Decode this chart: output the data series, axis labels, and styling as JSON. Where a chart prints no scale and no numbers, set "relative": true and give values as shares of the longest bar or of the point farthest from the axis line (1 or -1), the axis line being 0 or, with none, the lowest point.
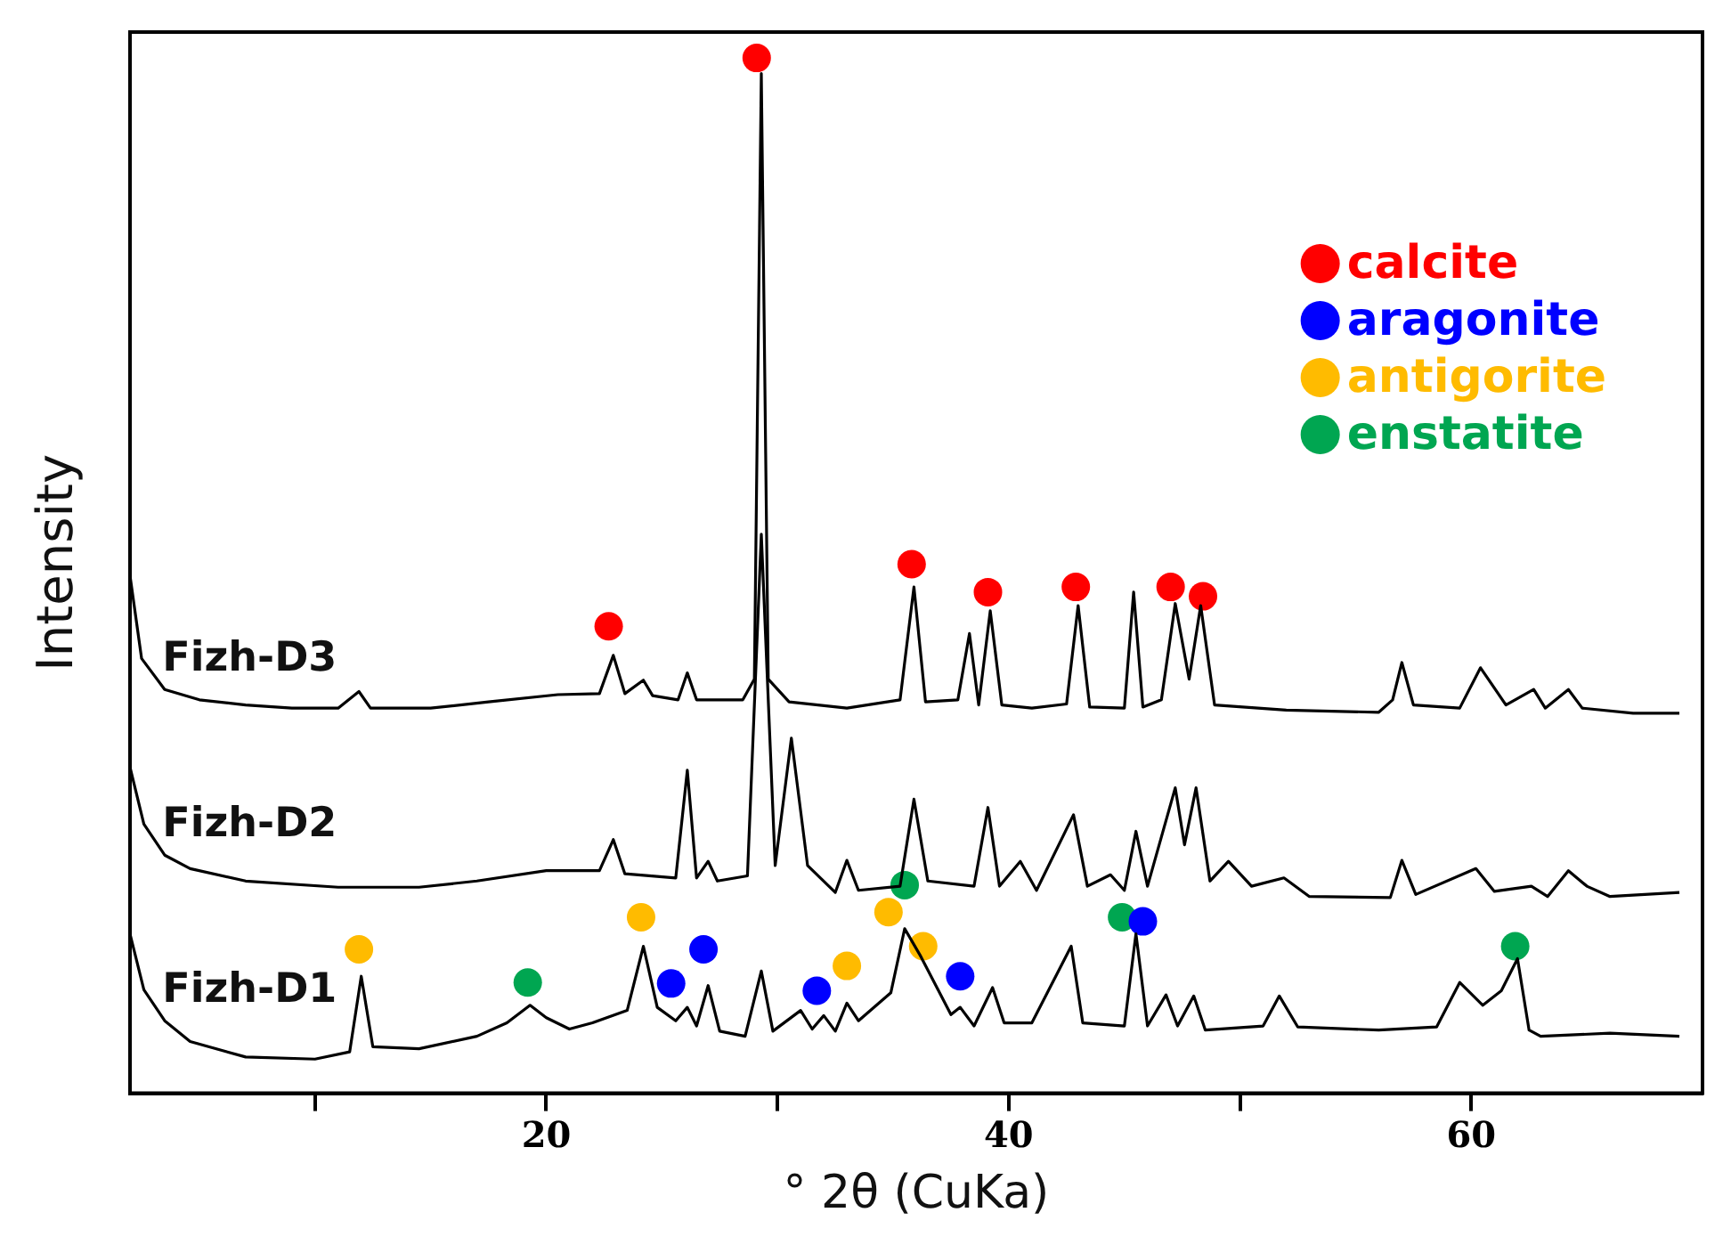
{
  "chart_data": {
    "type": "line",
    "xlabel": "° 2θ (CuKa)",
    "ylabel": "Intensity",
    "relative": true,
    "legend": "top right",
    "grid": false,
    "xlim": [
      2,
      70
    ],
    "xticks": [
      {
        "value": 10,
        "label": null
      },
      20,
      {
        "value": 30,
        "label": null
      },
      40,
      {
        "value": 50,
        "label": null
      },
      60
    ],
    "series": [
      {
        "name": "Fizh-D1",
        "color": "#000000",
        "x": [
          2.0,
          2.6,
          3.5,
          4.6,
          7,
          10,
          11.5,
          12.0,
          12.5,
          14.5,
          17,
          18.3,
          19.3,
          20,
          21,
          22,
          23.5,
          24.2,
          24.8,
          25.6,
          26.1,
          26.5,
          27.0,
          27.5,
          28.6,
          29.3,
          29.8,
          31.0,
          31.5,
          32.0,
          32.5,
          33.0,
          33.5,
          34.9,
          35.5,
          36.2,
          37.5,
          37.9,
          38.5,
          39.3,
          39.8,
          41,
          42.7,
          43.2,
          45.0,
          45.5,
          46.0,
          46.8,
          47.3,
          48.0,
          48.5,
          51.0,
          51.7,
          52.5,
          56,
          58.5,
          59.5,
          60.5,
          61.3,
          62.0,
          62.5,
          63,
          66,
          69
        ],
        "values": [
          0.154,
          0.1,
          0.07,
          0.05,
          0.035,
          0.033,
          0.04,
          0.113,
          0.045,
          0.043,
          0.055,
          0.068,
          0.085,
          0.073,
          0.062,
          0.068,
          0.08,
          0.142,
          0.083,
          0.07,
          0.083,
          0.065,
          0.104,
          0.06,
          0.055,
          0.118,
          0.06,
          0.08,
          0.062,
          0.075,
          0.06,
          0.087,
          0.07,
          0.097,
          0.159,
          0.132,
          0.076,
          0.083,
          0.065,
          0.102,
          0.068,
          0.068,
          0.142,
          0.068,
          0.065,
          0.154,
          0.065,
          0.095,
          0.065,
          0.094,
          0.061,
          0.065,
          0.094,
          0.064,
          0.061,
          0.064,
          0.107,
          0.085,
          0.099,
          0.13,
          0.061,
          0.055,
          0.058,
          0.055
        ]
      },
      {
        "name": "Fizh-D2",
        "color": "#000000",
        "x": [
          2.0,
          2.6,
          3.5,
          4.6,
          7,
          11,
          14.5,
          17,
          20,
          22.3,
          22.9,
          23.4,
          25.6,
          26.1,
          26.5,
          27.0,
          27.4,
          28.7,
          29.3,
          29.9,
          30.6,
          31.3,
          32.5,
          33.0,
          33.5,
          35.3,
          35.9,
          36.5,
          38.5,
          39.1,
          39.6,
          40.5,
          41.2,
          42.8,
          43.4,
          44.4,
          45.0,
          45.5,
          46.0,
          47.2,
          47.6,
          48.1,
          48.7,
          49.5,
          50.5,
          51.9,
          53,
          56.5,
          57.0,
          57.6,
          60.2,
          61,
          62.6,
          63.3,
          64.2,
          65.0,
          66,
          69
        ],
        "values": [
          0.315,
          0.26,
          0.23,
          0.217,
          0.205,
          0.199,
          0.199,
          0.205,
          0.215,
          0.215,
          0.245,
          0.212,
          0.208,
          0.312,
          0.208,
          0.224,
          0.205,
          0.21,
          0.54,
          0.22,
          0.343,
          0.22,
          0.194,
          0.225,
          0.196,
          0.2,
          0.284,
          0.205,
          0.2,
          0.276,
          0.2,
          0.224,
          0.196,
          0.269,
          0.2,
          0.211,
          0.196,
          0.253,
          0.2,
          0.295,
          0.24,
          0.295,
          0.205,
          0.224,
          0.2,
          0.208,
          0.19,
          0.189,
          0.225,
          0.192,
          0.217,
          0.195,
          0.2,
          0.19,
          0.215,
          0.2,
          0.19,
          0.194
        ]
      },
      {
        "name": "Fizh-D3",
        "color": "#000000",
        "x": [
          2.0,
          2.5,
          3.5,
          5,
          7,
          9,
          11,
          11.9,
          12.4,
          15,
          17.5,
          20.5,
          22.3,
          22.9,
          23.4,
          24.2,
          24.6,
          25.7,
          26.1,
          26.5,
          28.5,
          29.0,
          29.3,
          29.6,
          30.5,
          33,
          35.3,
          35.9,
          36.4,
          37.8,
          38.3,
          38.7,
          39.2,
          39.7,
          41,
          42.5,
          43.0,
          43.5,
          45.0,
          45.4,
          45.8,
          46.6,
          47.2,
          47.8,
          48.3,
          48.9,
          52,
          56,
          56.6,
          57.0,
          57.5,
          59.5,
          60.4,
          61.5,
          62.7,
          63.2,
          64.2,
          64.8,
          67,
          69
        ],
        "values": [
          0.5,
          0.42,
          0.39,
          0.38,
          0.375,
          0.372,
          0.372,
          0.388,
          0.372,
          0.372,
          0.378,
          0.385,
          0.386,
          0.423,
          0.386,
          0.399,
          0.384,
          0.38,
          0.406,
          0.38,
          0.38,
          0.4,
          0.985,
          0.4,
          0.378,
          0.372,
          0.38,
          0.489,
          0.378,
          0.38,
          0.444,
          0.375,
          0.466,
          0.375,
          0.372,
          0.376,
          0.471,
          0.373,
          0.372,
          0.484,
          0.373,
          0.38,
          0.473,
          0.4,
          0.471,
          0.375,
          0.37,
          0.368,
          0.38,
          0.416,
          0.375,
          0.372,
          0.411,
          0.375,
          0.39,
          0.372,
          0.39,
          0.372,
          0.367,
          0.367
        ]
      },
      {
        "type": "scatter",
        "marker": "circle",
        "name": "calcite",
        "color": "#ff0000",
        "x": [
          22.7,
          29.1,
          35.8,
          39.1,
          42.9,
          47.0,
          48.4
        ],
        "values": [
          0.451,
          1.0,
          0.511,
          0.484,
          0.489,
          0.489,
          0.48
        ]
      },
      {
        "type": "scatter",
        "marker": "circle",
        "name": "aragonite",
        "color": "#0000ff",
        "x": [
          25.4,
          26.8,
          31.7,
          37.9,
          45.8
        ],
        "values": [
          0.106,
          0.139,
          0.099,
          0.113,
          0.166
        ]
      },
      {
        "type": "scatter",
        "marker": "circle",
        "name": "antigorite",
        "color": "#ffbb00",
        "x": [
          11.9,
          24.1,
          33.0,
          34.8,
          36.3
        ],
        "values": [
          0.139,
          0.17,
          0.123,
          0.175,
          0.142
        ]
      },
      {
        "type": "scatter",
        "marker": "circle",
        "name": "enstatite",
        "color": "#00a651",
        "x": [
          19.2,
          35.5,
          44.9,
          61.9
        ],
        "values": [
          0.107,
          0.201,
          0.17,
          0.142
        ]
      }
    ]
  }
}
